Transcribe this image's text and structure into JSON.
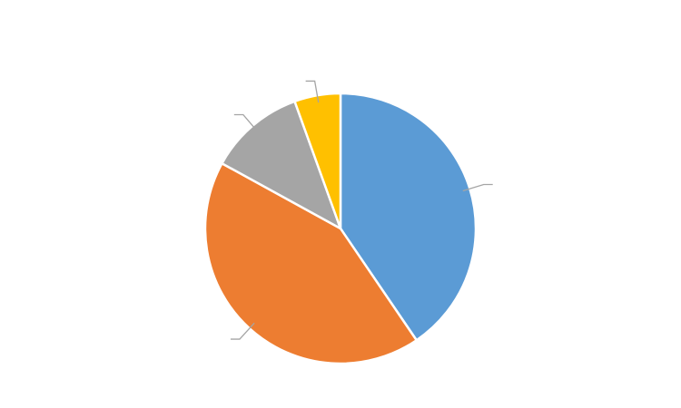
{
  "chart_data": {
    "type": "pie",
    "title": "",
    "slices": [
      {
        "value": 40.5,
        "color": "#5B9BD5"
      },
      {
        "value": 42.5,
        "color": "#ED7D31"
      },
      {
        "value": 11.5,
        "color": "#A5A5A5"
      },
      {
        "value": 5.5,
        "color": "#FFC000"
      }
    ],
    "data_labels_shown": false,
    "leader_lines": true,
    "leader_line_color": "#A5A5A5",
    "background": "#FFFFFF",
    "slice_border_color": "#FFFFFF"
  }
}
